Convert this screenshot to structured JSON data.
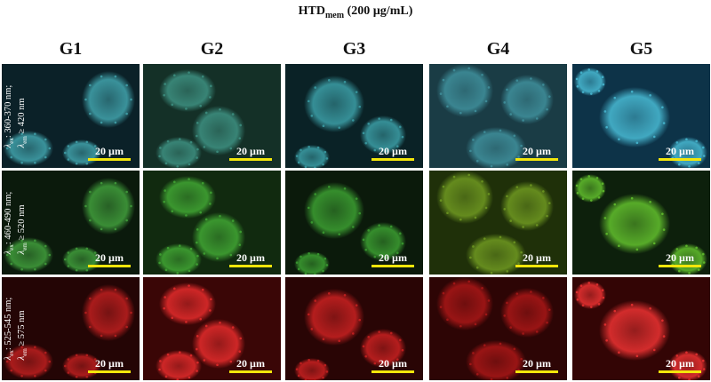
{
  "figure": {
    "title_main": "HTD",
    "title_sub": "mem",
    "title_rest": " (200 µg/mL)",
    "columns": [
      "G1",
      "G2",
      "G3",
      "G4",
      "G5"
    ],
    "rows": [
      {
        "channel": "blue",
        "label_line1_sym": "λ",
        "label_line1_sub": "ex",
        "label_line1_text": ": 360-370 nm;",
        "label_line2_sym": "λ",
        "label_line2_sub": "em",
        "label_line2_text": " ≥ 420 nm",
        "bg_colors": [
          "#0b2128",
          "#143027",
          "#0a2226",
          "#1a3c45",
          "#0d3348"
        ],
        "cell_colors": [
          "#3f9ea7",
          "#3c8d7e",
          "#3a9aa2",
          "#3e8d99",
          "#46b5ce"
        ]
      },
      {
        "channel": "green",
        "label_line1_sym": "λ",
        "label_line1_sub": "ex",
        "label_line1_text": ": 460-490 nm;",
        "label_line2_sym": "λ",
        "label_line2_sub": "em",
        "label_line2_text": " ≥ 520 nm",
        "bg_colors": [
          "#0b1a0c",
          "#112a0f",
          "#0b1a0b",
          "#1f3009",
          "#0d200c"
        ],
        "cell_colors": [
          "#3f9a3a",
          "#3fa232",
          "#3a9a30",
          "#6c9520",
          "#5fba2c"
        ]
      },
      {
        "channel": "red",
        "label_line1_sym": "λ",
        "label_line1_sub": "ex",
        "label_line1_text": ": 525-545 nm;",
        "label_line2_sym": "λ",
        "label_line2_sub": "em",
        "label_line2_text": " ≥ 575 nm",
        "bg_colors": [
          "#240505",
          "#3a0606",
          "#290505",
          "#2d0505",
          "#330505"
        ],
        "cell_colors": [
          "#b81e1e",
          "#de2a2a",
          "#c42020",
          "#a51616",
          "#e43030"
        ]
      }
    ],
    "scale_bar_label": "20 µm",
    "scale_bar_color": "#f3e60b"
  }
}
